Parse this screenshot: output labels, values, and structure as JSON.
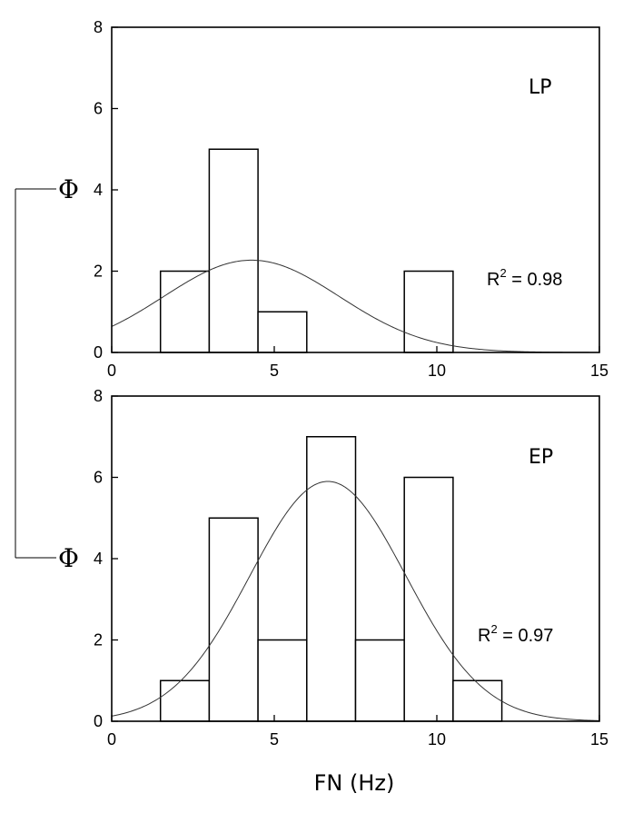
{
  "chart_data": [
    {
      "type": "bar",
      "panel_label": "LP",
      "bins": [
        {
          "x0": 1.5,
          "x1": 3.0,
          "count": 2
        },
        {
          "x0": 3.0,
          "x1": 4.5,
          "count": 5
        },
        {
          "x0": 4.5,
          "x1": 6.0,
          "count": 1
        },
        {
          "x0": 9.0,
          "x1": 10.5,
          "count": 2
        }
      ],
      "fit": {
        "type": "gaussian",
        "amplitude": 2.27,
        "mean": 4.3,
        "sigma": 2.7
      },
      "annotation": {
        "r2_label": "R",
        "r2_sup": "2",
        "r2_value": " = 0.98"
      },
      "xlim": [
        0,
        15
      ],
      "ylim": [
        0,
        8
      ],
      "xticks": [
        "0",
        "5",
        "10",
        "15"
      ],
      "yticks": [
        "0",
        "2",
        "4",
        "6",
        "8"
      ],
      "ylabel": "Φ",
      "grid": false
    },
    {
      "type": "bar",
      "panel_label": "EP",
      "bins": [
        {
          "x0": 1.5,
          "x1": 3.0,
          "count": 1
        },
        {
          "x0": 3.0,
          "x1": 4.5,
          "count": 5
        },
        {
          "x0": 4.5,
          "x1": 6.0,
          "count": 2
        },
        {
          "x0": 6.0,
          "x1": 7.5,
          "count": 7
        },
        {
          "x0": 7.5,
          "x1": 9.0,
          "count": 2
        },
        {
          "x0": 9.0,
          "x1": 10.5,
          "count": 6
        },
        {
          "x0": 10.5,
          "x1": 12.0,
          "count": 1
        }
      ],
      "fit": {
        "type": "gaussian",
        "amplitude": 5.9,
        "mean": 6.65,
        "sigma": 2.4
      },
      "annotation": {
        "r2_label": "R",
        "r2_sup": "2",
        "r2_value": " = 0.97"
      },
      "xlim": [
        0,
        15
      ],
      "ylim": [
        0,
        8
      ],
      "xticks": [
        "0",
        "5",
        "10",
        "15"
      ],
      "yticks": [
        "0",
        "2",
        "4",
        "6",
        "8"
      ],
      "ylabel": "Φ",
      "xlabel": "FN (Hz)",
      "grid": false
    }
  ]
}
